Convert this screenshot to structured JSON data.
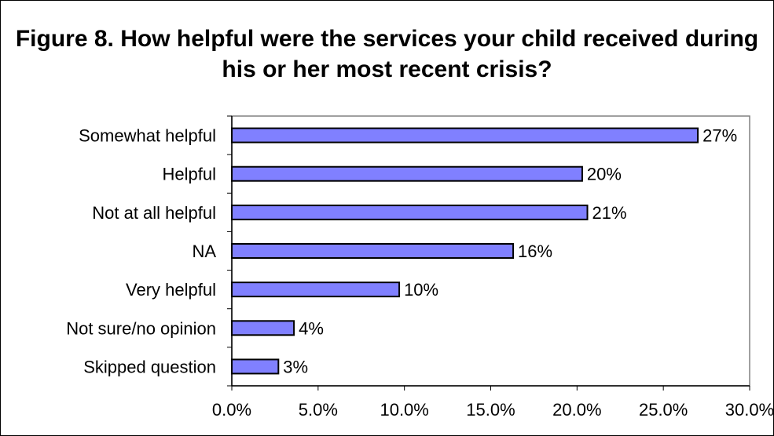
{
  "chart_data": {
    "type": "bar",
    "orientation": "horizontal",
    "title": "Figure 8. How helpful were the services your child received during his or her most recent crisis?",
    "xlabel": "",
    "ylabel": "",
    "categories": [
      "Somewhat helpful",
      "Helpful",
      "Not at all helpful",
      "NA",
      "Very helpful",
      "Not sure/no opinion",
      "Skipped question"
    ],
    "values": [
      27,
      20.3,
      20.6,
      16.3,
      9.7,
      3.6,
      2.7
    ],
    "value_labels": [
      "27%",
      "20%",
      "21%",
      "16%",
      "10%",
      "4%",
      "3%"
    ],
    "xlim": [
      0,
      30
    ],
    "xticks": [
      0,
      5,
      10,
      15,
      20,
      25,
      30
    ],
    "xtick_labels": [
      "0.0%",
      "5.0%",
      "10.0%",
      "15.0%",
      "20.0%",
      "25.0%",
      "30.0%"
    ],
    "grid": false,
    "legend": "none",
    "bar_color": "#8080ff",
    "bar_edge_color": "#000000"
  }
}
